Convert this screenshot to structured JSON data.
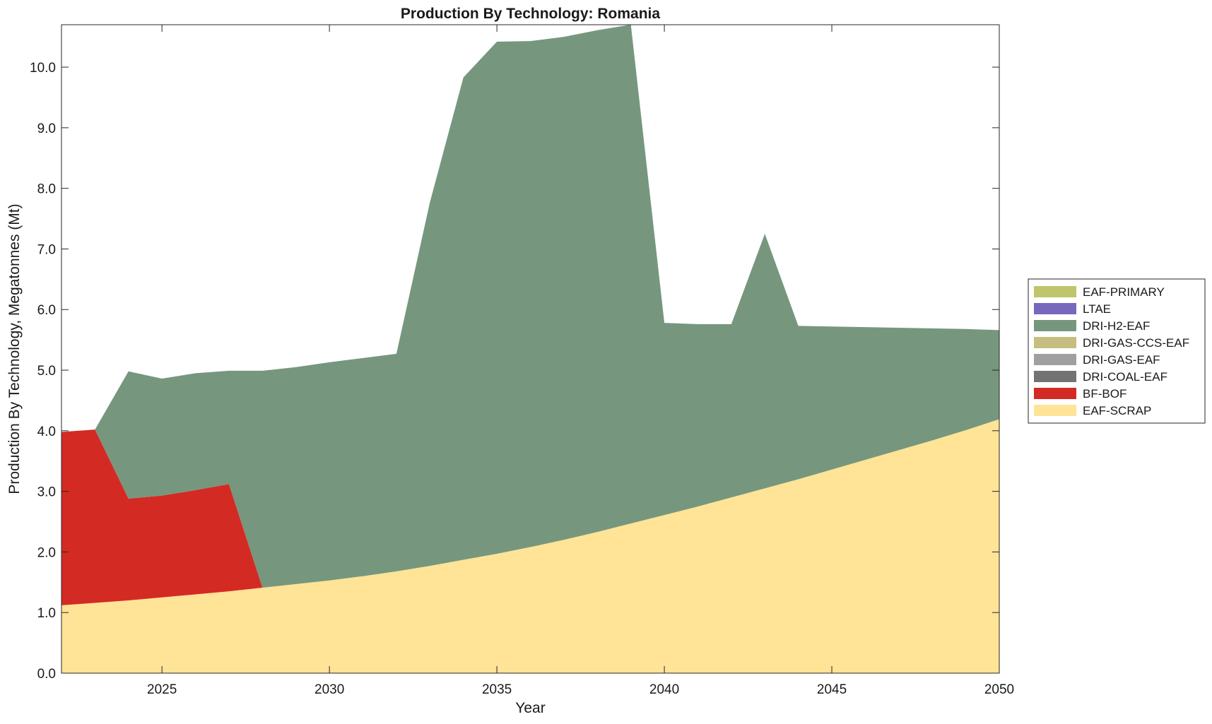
{
  "chart_data": {
    "type": "area",
    "stacked": true,
    "title": "Production By Technology: Romania",
    "xlabel": "Year",
    "ylabel": "Production By Technology, Megatonnes (Mt)",
    "xlim": [
      2022,
      2050
    ],
    "ylim": [
      0,
      10.7
    ],
    "x_ticks": [
      2025,
      2030,
      2035,
      2040,
      2045,
      2050
    ],
    "y_ticks": [
      0.0,
      1.0,
      2.0,
      3.0,
      4.0,
      5.0,
      6.0,
      7.0,
      8.0,
      9.0,
      10.0
    ],
    "y_tick_labels": [
      "0.0",
      "1.0",
      "2.0",
      "3.0",
      "4.0",
      "5.0",
      "6.0",
      "7.0",
      "8.0",
      "9.0",
      "10.0"
    ],
    "grid": false,
    "legend_position": "right",
    "x": [
      2022,
      2023,
      2024,
      2025,
      2026,
      2027,
      2028,
      2029,
      2030,
      2031,
      2032,
      2033,
      2034,
      2035,
      2036,
      2037,
      2038,
      2039,
      2040,
      2041,
      2042,
      2043,
      2044,
      2045,
      2046,
      2047,
      2048,
      2049,
      2050
    ],
    "series": [
      {
        "name": "EAF-SCRAP",
        "color": "#ffe396",
        "values": [
          1.12,
          1.16,
          1.2,
          1.25,
          1.3,
          1.35,
          1.41,
          1.47,
          1.53,
          1.6,
          1.68,
          1.77,
          1.87,
          1.97,
          2.08,
          2.2,
          2.33,
          2.47,
          2.61,
          2.75,
          2.9,
          3.05,
          3.2,
          3.36,
          3.52,
          3.68,
          3.84,
          4.01,
          4.19
        ]
      },
      {
        "name": "BF-BOF",
        "color": "#d42a24",
        "values": [
          2.86,
          2.86,
          1.68,
          1.68,
          1.72,
          1.77,
          0,
          0,
          0,
          0,
          0,
          0,
          0,
          0,
          0,
          0,
          0,
          0,
          0,
          0,
          0,
          0,
          0,
          0,
          0,
          0,
          0,
          0,
          0
        ]
      },
      {
        "name": "DRI-COAL-EAF",
        "color": "#737373",
        "values": [
          0,
          0,
          0,
          0,
          0,
          0,
          0,
          0,
          0,
          0,
          0,
          0,
          0,
          0,
          0,
          0,
          0,
          0,
          0,
          0,
          0,
          0,
          0,
          0,
          0,
          0,
          0,
          0,
          0
        ]
      },
      {
        "name": "DRI-GAS-EAF",
        "color": "#a0a0a0",
        "values": [
          0,
          0,
          0,
          0,
          0,
          0,
          0,
          0,
          0,
          0,
          0,
          0,
          0,
          0,
          0,
          0,
          0,
          0,
          0,
          0,
          0,
          0,
          0,
          0,
          0,
          0,
          0,
          0,
          0
        ]
      },
      {
        "name": "DRI-GAS-CCS-EAF",
        "color": "#c6bd80",
        "values": [
          0,
          0,
          0,
          0,
          0,
          0,
          0,
          0,
          0,
          0,
          0,
          0,
          0,
          0,
          0,
          0,
          0,
          0,
          0,
          0,
          0,
          0,
          0,
          0,
          0,
          0,
          0,
          0,
          0
        ]
      },
      {
        "name": "DRI-H2-EAF",
        "color": "#76977d",
        "values": [
          0,
          0,
          2.1,
          1.93,
          1.93,
          1.87,
          3.58,
          3.58,
          3.6,
          3.6,
          3.59,
          6.0,
          7.96,
          8.45,
          8.35,
          8.3,
          8.28,
          8.23,
          3.17,
          3.01,
          2.86,
          4.2,
          2.53,
          2.36,
          2.19,
          2.02,
          1.85,
          1.67,
          1.47
        ]
      },
      {
        "name": "LTAE",
        "color": "#7768be",
        "values": [
          0,
          0,
          0,
          0,
          0,
          0,
          0,
          0,
          0,
          0,
          0,
          0,
          0,
          0,
          0,
          0,
          0,
          0,
          0,
          0,
          0,
          0,
          0,
          0,
          0,
          0,
          0,
          0,
          0
        ]
      },
      {
        "name": "EAF-PRIMARY",
        "color": "#bec56b",
        "values": [
          0,
          0,
          0,
          0,
          0,
          0,
          0,
          0,
          0,
          0,
          0,
          0,
          0,
          0,
          0,
          0,
          0,
          0,
          0,
          0,
          0,
          0,
          0,
          0,
          0,
          0,
          0,
          0,
          0
        ]
      }
    ]
  }
}
